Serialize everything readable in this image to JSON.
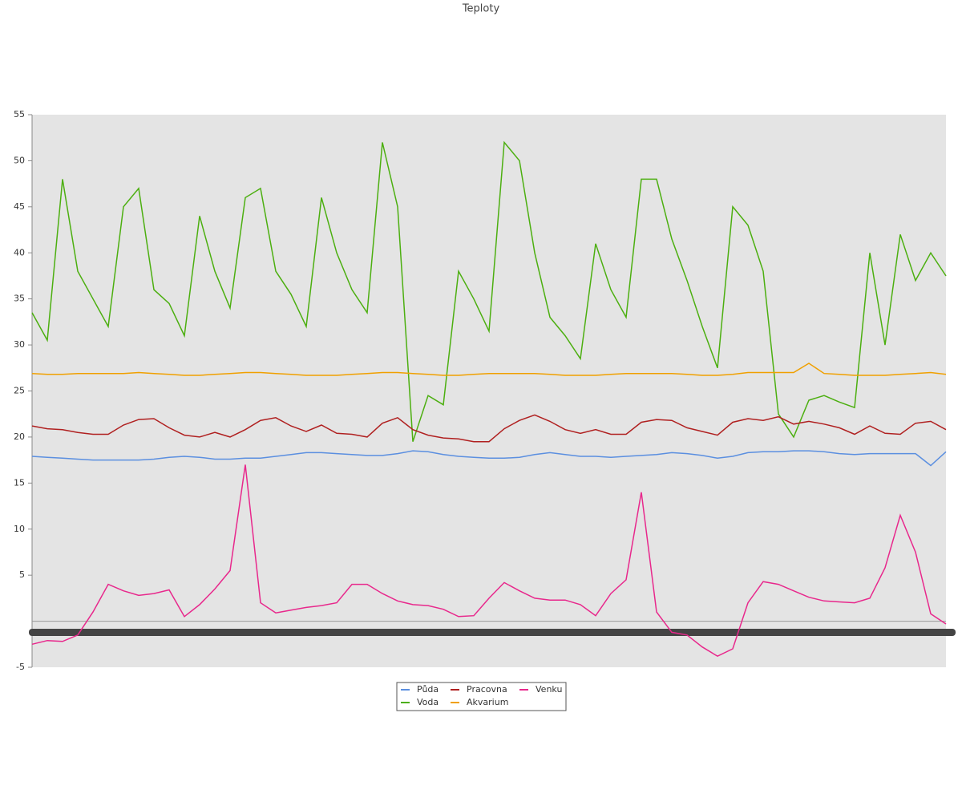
{
  "chart_data": {
    "type": "line",
    "title": "Teploty",
    "ylim": [
      -5,
      55
    ],
    "yticks": [
      -5,
      5,
      10,
      15,
      20,
      25,
      30,
      35,
      40,
      45,
      50,
      55
    ],
    "legend": "bottom",
    "series": [
      {
        "name": "Půda",
        "color": "#5b8fe0",
        "values": [
          17.9,
          17.8,
          17.7,
          17.6,
          17.5,
          17.5,
          17.5,
          17.5,
          17.6,
          17.8,
          17.9,
          17.8,
          17.6,
          17.6,
          17.7,
          17.7,
          17.9,
          18.1,
          18.3,
          18.3,
          18.2,
          18.1,
          18.0,
          18.0,
          18.2,
          18.5,
          18.4,
          18.1,
          17.9,
          17.8,
          17.7,
          17.7,
          17.8,
          18.1,
          18.3,
          18.1,
          17.9,
          17.9,
          17.8,
          17.9,
          18.0,
          18.1,
          18.3,
          18.2,
          18.0,
          17.7,
          17.9,
          18.3,
          18.4,
          18.4,
          18.5,
          18.5,
          18.4,
          18.2,
          18.1,
          18.2,
          18.2,
          18.2,
          18.2,
          16.9,
          18.4
        ]
      },
      {
        "name": "Voda",
        "color": "#4caf10",
        "values": [
          33.5,
          30.5,
          48,
          38,
          35,
          32,
          45,
          47,
          36,
          34.5,
          31,
          44,
          38,
          34,
          46,
          47,
          38,
          35.5,
          32,
          46,
          40,
          36,
          33.5,
          52,
          45,
          19.5,
          24.5,
          23.5,
          38,
          35,
          31.5,
          52,
          50,
          40,
          33,
          31,
          28.5,
          41,
          36,
          33,
          48,
          48,
          41.5,
          37,
          32,
          27.5,
          45,
          43,
          38,
          22.5,
          20,
          24,
          24.5,
          23.8,
          23.2,
          40,
          30,
          42,
          37,
          40,
          37.5
        ]
      },
      {
        "name": "Pracovna",
        "color": "#b02020",
        "values": [
          21.2,
          20.9,
          20.8,
          20.5,
          20.3,
          20.3,
          21.3,
          21.9,
          22.0,
          21.0,
          20.2,
          20.0,
          20.5,
          20.0,
          20.8,
          21.8,
          22.1,
          21.2,
          20.6,
          21.3,
          20.4,
          20.3,
          20.0,
          21.5,
          22.1,
          20.8,
          20.2,
          19.9,
          19.8,
          19.5,
          19.5,
          20.9,
          21.8,
          22.4,
          21.7,
          20.8,
          20.4,
          20.8,
          20.3,
          20.3,
          21.6,
          21.9,
          21.8,
          21.0,
          20.6,
          20.2,
          21.6,
          22.0,
          21.8,
          22.2,
          21.4,
          21.7,
          21.4,
          21.0,
          20.3,
          21.2,
          20.4,
          20.3,
          21.5,
          21.7,
          20.8
        ]
      },
      {
        "name": "Akvarium",
        "color": "#f0a000",
        "values": [
          26.9,
          26.8,
          26.8,
          26.9,
          26.9,
          26.9,
          26.9,
          27.0,
          26.9,
          26.8,
          26.7,
          26.7,
          26.8,
          26.9,
          27.0,
          27.0,
          26.9,
          26.8,
          26.7,
          26.7,
          26.7,
          26.8,
          26.9,
          27.0,
          27.0,
          26.9,
          26.8,
          26.7,
          26.7,
          26.8,
          26.9,
          26.9,
          26.9,
          26.9,
          26.8,
          26.7,
          26.7,
          26.7,
          26.8,
          26.9,
          26.9,
          26.9,
          26.9,
          26.8,
          26.7,
          26.7,
          26.8,
          27.0,
          27.0,
          27.0,
          27.0,
          28,
          26.9,
          26.8,
          26.7,
          26.7,
          26.7,
          26.8,
          26.9,
          27.0,
          26.8
        ]
      },
      {
        "name": "Venku",
        "color": "#e8288c",
        "values": [
          -2.5,
          -2.1,
          -2.2,
          -1.5,
          1.0,
          4.0,
          3.3,
          2.8,
          3.0,
          3.4,
          0.5,
          1.8,
          3.5,
          5.5,
          17.0,
          2.0,
          0.9,
          1.2,
          1.5,
          1.7,
          2.0,
          4.0,
          4.0,
          3.0,
          2.2,
          1.8,
          1.7,
          1.3,
          0.5,
          0.6,
          2.5,
          4.2,
          3.3,
          2.5,
          2.3,
          2.3,
          1.8,
          0.6,
          3.0,
          4.5,
          14.0,
          1.0,
          -1.2,
          -1.5,
          -2.8,
          -3.8,
          -3.0,
          2.0,
          4.3,
          4.0,
          3.3,
          2.6,
          2.2,
          2.1,
          2.0,
          2.5,
          5.8,
          11.5,
          7.5,
          0.8,
          -0.3
        ]
      }
    ]
  }
}
